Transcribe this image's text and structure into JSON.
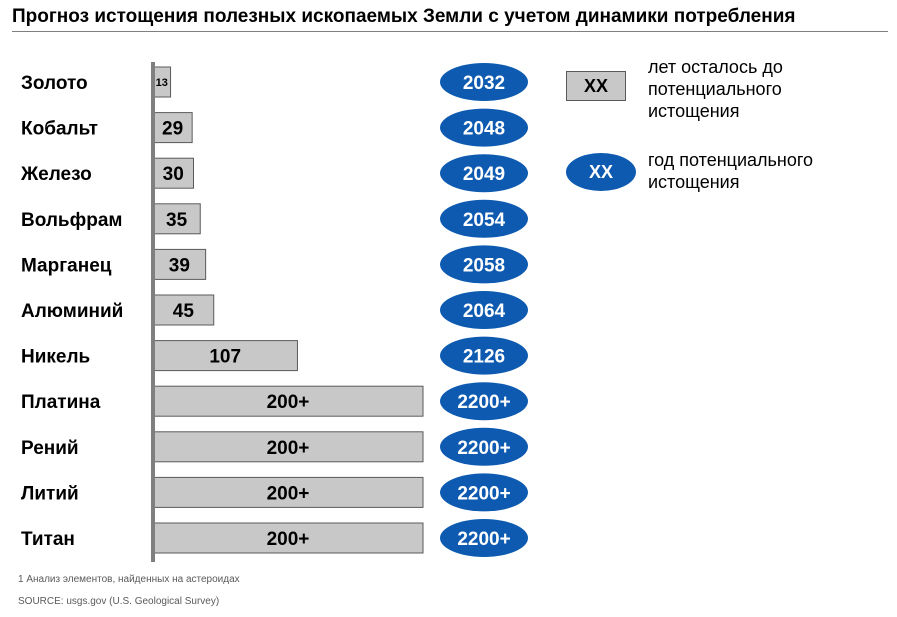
{
  "title": "Прогноз истощения полезных ископаемых Земли с учетом динамики потребления",
  "chart_data": {
    "type": "bar",
    "orientation": "horizontal",
    "categories": [
      "Золото",
      "Кобальт",
      "Железо",
      "Вольфрам",
      "Марганец",
      "Алюминий",
      "Никель",
      "Платина",
      "Рений",
      "Литий",
      "Титан"
    ],
    "values": [
      13,
      29,
      30,
      35,
      39,
      45,
      107,
      200,
      200,
      200,
      200
    ],
    "value_labels": [
      "13",
      "29",
      "30",
      "35",
      "39",
      "45",
      "107",
      "200+",
      "200+",
      "200+",
      "200+"
    ],
    "years": [
      "2032",
      "2048",
      "2049",
      "2054",
      "2058",
      "2064",
      "2126",
      "2200+",
      "2200+",
      "2200+",
      "2200+"
    ],
    "grid": false
  },
  "legend": {
    "box_label": "XX",
    "box_text": "лет осталось до потенциального истощения",
    "oval_label": "XX",
    "oval_text": "год потенциального истощения"
  },
  "footnotes": {
    "note": "1 Анализ элементов, найденных на астероидах",
    "source": "SOURCE:  usgs.gov (U.S. Geological Survey)"
  },
  "colors": {
    "bar_fill": "#c8c8c8",
    "bar_stroke": "#5a5a5a",
    "axis": "#7f7f7f",
    "oval_fill": "#0d5ab0",
    "oval_text": "#ffffff"
  }
}
